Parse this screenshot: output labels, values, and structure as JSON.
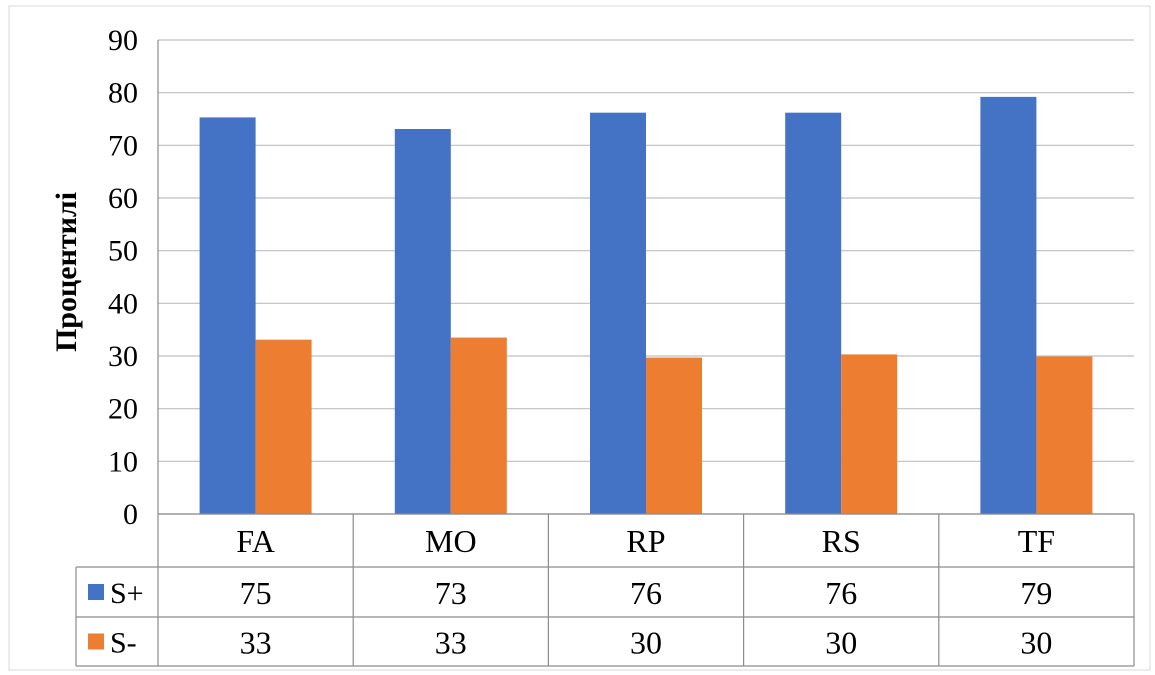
{
  "chart_data": {
    "type": "bar",
    "title": "",
    "xlabel": "",
    "ylabel": "Процентилі",
    "ylim": [
      0,
      90
    ],
    "yticks": [
      0,
      10,
      20,
      30,
      40,
      50,
      60,
      70,
      80,
      90
    ],
    "grid": true,
    "legend": "data-table-left",
    "categories": [
      "FA",
      "MO",
      "RP",
      "RS",
      "TF"
    ],
    "series": [
      {
        "name": "S+",
        "color": "#4472C4",
        "values": [
          75.3,
          73.1,
          76.2,
          76.2,
          79.2
        ],
        "labels": [
          "75",
          "73",
          "76",
          "76",
          "79"
        ]
      },
      {
        "name": "S-",
        "color": "#ED7D31",
        "values": [
          33.1,
          33.5,
          29.7,
          30.3,
          29.9
        ],
        "labels": [
          "33",
          "33",
          "30",
          "30",
          "30"
        ]
      }
    ]
  }
}
